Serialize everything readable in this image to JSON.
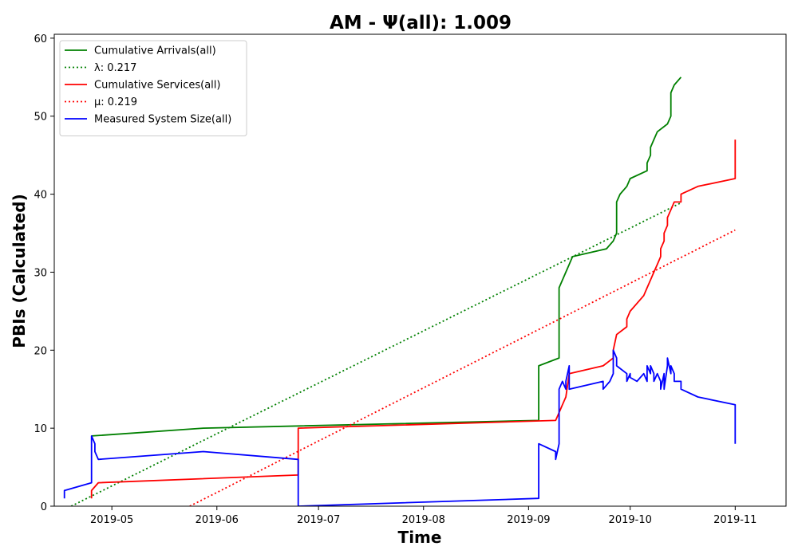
{
  "chart_data": {
    "type": "line",
    "title": "AM -  Ψ(all): 1.009",
    "xlabel": "Time",
    "ylabel": "PBIs (Calculated)",
    "xlim": [
      "2019-04-14",
      "2019-11-16"
    ],
    "ylim": [
      0,
      60.5
    ],
    "x_ticks": [
      "2019-05-01",
      "2019-06-01",
      "2019-07-01",
      "2019-08-01",
      "2019-09-01",
      "2019-10-01",
      "2019-11-01"
    ],
    "x_tick_labels": [
      "2019-05",
      "2019-06",
      "2019-07",
      "2019-08",
      "2019-09",
      "2019-10",
      "2019-11"
    ],
    "y_ticks": [
      0,
      10,
      20,
      30,
      40,
      50,
      60
    ],
    "y_tick_labels": [
      "0",
      "10",
      "20",
      "30",
      "40",
      "50",
      "60"
    ],
    "grid": false,
    "legend_position": "top-left",
    "series": [
      {
        "name": "Cumulative Arrivals(all)",
        "color": "#008000",
        "style": "solid",
        "x": [
          "2019-04-25",
          "2019-05-28",
          "2019-09-04",
          "2019-09-04",
          "2019-09-10",
          "2019-09-10",
          "2019-09-10",
          "2019-09-12",
          "2019-09-13",
          "2019-09-14",
          "2019-09-24",
          "2019-09-26",
          "2019-09-27",
          "2019-09-27",
          "2019-09-27",
          "2019-09-28",
          "2019-09-30",
          "2019-10-01",
          "2019-10-06",
          "2019-10-06",
          "2019-10-07",
          "2019-10-07",
          "2019-10-08",
          "2019-10-09",
          "2019-10-12",
          "2019-10-13",
          "2019-10-13",
          "2019-10-14",
          "2019-10-16"
        ],
        "values": [
          9,
          10,
          11,
          18,
          19,
          20,
          28,
          30,
          31,
          32,
          33,
          34,
          35,
          38,
          39,
          40,
          41,
          42,
          43,
          44,
          45,
          46,
          47,
          48,
          49,
          50,
          53,
          54,
          55
        ]
      },
      {
        "name": "λ: 0.217",
        "color": "#008000",
        "style": "dotted",
        "x": [
          "2019-04-19",
          "2019-10-16"
        ],
        "values": [
          0,
          38.9
        ]
      },
      {
        "name": "Cumulative Services(all)",
        "color": "#ff0000",
        "style": "solid",
        "x": [
          "2019-04-25",
          "2019-04-25",
          "2019-04-27",
          "2019-06-25",
          "2019-06-25",
          "2019-09-09",
          "2019-09-10",
          "2019-09-11",
          "2019-09-12",
          "2019-09-13",
          "2019-09-23",
          "2019-09-26",
          "2019-09-26",
          "2019-09-27",
          "2019-09-30",
          "2019-09-30",
          "2019-10-01",
          "2019-10-05",
          "2019-10-06",
          "2019-10-07",
          "2019-10-08",
          "2019-10-09",
          "2019-10-10",
          "2019-10-10",
          "2019-10-11",
          "2019-10-11",
          "2019-10-12",
          "2019-10-12",
          "2019-10-13",
          "2019-10-14",
          "2019-10-16",
          "2019-10-16",
          "2019-10-21",
          "2019-11-01",
          "2019-11-01"
        ],
        "values": [
          1,
          2,
          3,
          4,
          10,
          11,
          12,
          13,
          14,
          17,
          18,
          19,
          20,
          22,
          23,
          24,
          25,
          27,
          28,
          29,
          30,
          31,
          32,
          33,
          34,
          35,
          36,
          37,
          38,
          39,
          39,
          40,
          41,
          42,
          47
        ]
      },
      {
        "name": "μ: 0.219",
        "color": "#ff0000",
        "style": "dotted",
        "x": [
          "2019-05-24",
          "2019-11-01"
        ],
        "values": [
          0,
          35.4
        ]
      },
      {
        "name": "Measured System Size(all)",
        "color": "#0000ff",
        "style": "solid",
        "x": [
          "2019-04-17",
          "2019-04-17",
          "2019-04-25",
          "2019-04-25",
          "2019-04-26",
          "2019-04-26",
          "2019-04-27",
          "2019-05-28",
          "2019-06-25",
          "2019-06-25",
          "2019-09-04",
          "2019-09-04",
          "2019-09-09",
          "2019-09-09",
          "2019-09-10",
          "2019-09-10",
          "2019-09-11",
          "2019-09-12",
          "2019-09-12",
          "2019-09-13",
          "2019-09-13",
          "2019-09-23",
          "2019-09-23",
          "2019-09-24",
          "2019-09-25",
          "2019-09-26",
          "2019-09-26",
          "2019-09-27",
          "2019-09-27",
          "2019-09-30",
          "2019-09-30",
          "2019-10-01",
          "2019-10-01",
          "2019-10-03",
          "2019-10-05",
          "2019-10-06",
          "2019-10-06",
          "2019-10-07",
          "2019-10-07",
          "2019-10-08",
          "2019-10-08",
          "2019-10-09",
          "2019-10-10",
          "2019-10-10",
          "2019-10-11",
          "2019-10-11",
          "2019-10-12",
          "2019-10-12",
          "2019-10-13",
          "2019-10-13",
          "2019-10-14",
          "2019-10-14",
          "2019-10-15",
          "2019-10-16",
          "2019-10-16",
          "2019-10-21",
          "2019-11-01",
          "2019-11-01"
        ],
        "values": [
          1,
          2,
          3,
          9,
          8,
          7,
          6,
          7,
          6,
          0,
          1,
          8,
          7,
          6,
          8,
          15,
          16,
          15,
          16,
          18,
          15,
          16,
          15,
          15.5,
          16,
          17,
          20,
          19,
          18,
          17,
          16,
          17,
          16.5,
          16,
          17,
          16,
          18,
          17,
          18,
          17,
          16,
          17,
          16,
          15,
          17,
          15,
          18,
          19,
          17,
          18,
          17,
          16,
          16,
          16,
          15,
          14,
          13,
          8
        ]
      }
    ]
  }
}
